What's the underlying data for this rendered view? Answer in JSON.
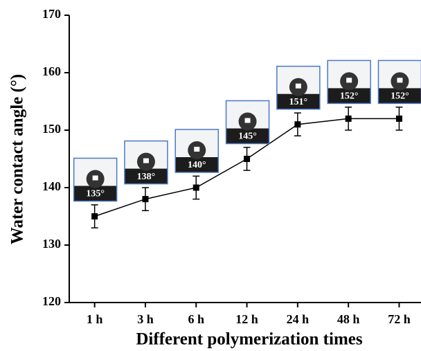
{
  "chart_data": {
    "type": "line",
    "xlabel": "Different polymerization times",
    "ylabel": "Water contact angle (°)",
    "categories": [
      "1 h",
      "3 h",
      "6 h",
      "12 h",
      "24 h",
      "48 h",
      "72 h"
    ],
    "series": [
      {
        "color": "#000000",
        "values": [
          135,
          138,
          140,
          145,
          151,
          152,
          152
        ],
        "errors": [
          2,
          2,
          2,
          2,
          2,
          2,
          2
        ],
        "value_labels": [
          "135°",
          "138°",
          "140°",
          "145°",
          "151°",
          "152°",
          "152°"
        ]
      }
    ],
    "ylim": [
      120,
      170
    ],
    "yticks": [
      120,
      130,
      140,
      150,
      160,
      170
    ]
  }
}
